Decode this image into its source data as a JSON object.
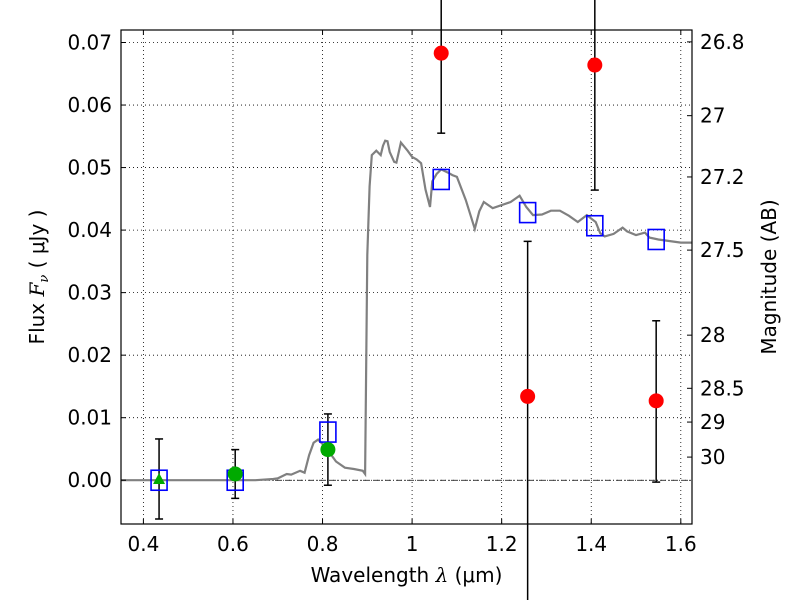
{
  "chart_data": {
    "type": "scatter",
    "xlabel": {
      "text": "Wavelength",
      "symbol": "λ",
      "unit": "(μm)"
    },
    "ylabel": {
      "text": "Flux",
      "symbol": "F",
      "subscript": "ν",
      "unit": "( μJy )"
    },
    "y2label": "Magnitude (AB)",
    "xlim": [
      0.35,
      1.625
    ],
    "ylim": [
      -0.007,
      0.072
    ],
    "x_ticks": [
      0.4,
      0.6,
      0.8,
      1.0,
      1.2,
      1.4,
      1.6
    ],
    "x_tick_labels": [
      "0.4",
      "0.6",
      "0.8",
      "1",
      "1.2",
      "1.4",
      "1.6"
    ],
    "y_ticks": [
      0.0,
      0.01,
      0.02,
      0.03,
      0.04,
      0.05,
      0.06,
      0.07
    ],
    "y_tick_labels": [
      "0.00",
      "0.01",
      "0.02",
      "0.03",
      "0.04",
      "0.05",
      "0.06",
      "0.07"
    ],
    "y2_tick_labels": [
      {
        "label": "26.8",
        "flux": 0.0701
      },
      {
        "label": "27",
        "flux": 0.0583
      },
      {
        "label": "27.2",
        "flux": 0.0485
      },
      {
        "label": "27.5",
        "flux": 0.0368
      },
      {
        "label": "28",
        "flux": 0.0232
      },
      {
        "label": "28.5",
        "flux": 0.0147
      },
      {
        "label": "29",
        "flux": 0.0093
      },
      {
        "label": "30",
        "flux": 0.0037
      }
    ],
    "grid": true,
    "colors": {
      "model": "#808080",
      "observed": "#ff0000",
      "fit": "#0000ff",
      "green": "#00aa00",
      "errorbar": "#000000",
      "zero_line": "#000000"
    },
    "series": [
      {
        "kind": "model_sed_line",
        "x": [
          0.35,
          0.5,
          0.65,
          0.69,
          0.7,
          0.72,
          0.73,
          0.75,
          0.76,
          0.77,
          0.78,
          0.79,
          0.8,
          0.815,
          0.83,
          0.85,
          0.87,
          0.89,
          0.895,
          0.9,
          0.905,
          0.91,
          0.92,
          0.93,
          0.935,
          0.94,
          0.945,
          0.95,
          0.96,
          0.965,
          0.975,
          0.99,
          1.0,
          1.01,
          1.02,
          1.03,
          1.04,
          1.045,
          1.055,
          1.065,
          1.08,
          1.09,
          1.1,
          1.12,
          1.14,
          1.15,
          1.16,
          1.18,
          1.2,
          1.22,
          1.24,
          1.255,
          1.27,
          1.29,
          1.31,
          1.33,
          1.35,
          1.37,
          1.39,
          1.41,
          1.42,
          1.43,
          1.45,
          1.47,
          1.48,
          1.5,
          1.52,
          1.53,
          1.55,
          1.58,
          1.6,
          1.625
        ],
        "y": [
          0.0,
          0.0,
          0.0,
          0.0002,
          0.0003,
          0.001,
          0.0009,
          0.0015,
          0.0012,
          0.004,
          0.006,
          0.0065,
          0.0058,
          0.0045,
          0.003,
          0.002,
          0.0018,
          0.0015,
          0.001,
          0.036,
          0.047,
          0.052,
          0.0527,
          0.052,
          0.0535,
          0.0543,
          0.0542,
          0.0525,
          0.0509,
          0.0508,
          0.054,
          0.0527,
          0.0517,
          0.0513,
          0.0507,
          0.0465,
          0.0437,
          0.0478,
          0.049,
          0.0497,
          0.0492,
          0.0488,
          0.0485,
          0.0448,
          0.0402,
          0.043,
          0.0445,
          0.0435,
          0.044,
          0.0445,
          0.0455,
          0.0437,
          0.0424,
          0.0425,
          0.0431,
          0.0431,
          0.0423,
          0.0413,
          0.0424,
          0.0413,
          0.0395,
          0.039,
          0.0394,
          0.0404,
          0.0398,
          0.0392,
          0.0396,
          0.0388,
          0.0385,
          0.0382,
          0.038,
          0.038
        ]
      },
      {
        "kind": "observed_points",
        "x": [
          1.065,
          1.258,
          1.408,
          1.545
        ],
        "y": [
          0.0683,
          0.0134,
          0.0664,
          0.0127
        ],
        "yerr_low": [
          0.0128,
          0.034,
          0.02,
          0.013
        ],
        "yerr_high": [
          0.0128,
          0.0248,
          0.02,
          0.0128
        ]
      },
      {
        "kind": "green_points",
        "marker": [
          "triangle",
          "circle",
          "circle"
        ],
        "x": [
          0.435,
          0.605,
          0.812
        ],
        "y": [
          0.0002,
          0.001,
          0.0049
        ],
        "yerr_low": [
          0.0064,
          0.0039,
          0.0057
        ],
        "yerr_high": [
          0.0064,
          0.0039,
          0.0057
        ]
      },
      {
        "kind": "model_band_fluxes",
        "marker": "open_square",
        "x": [
          0.435,
          0.605,
          0.812,
          1.065,
          1.258,
          1.408,
          1.545
        ],
        "y": [
          0.0,
          0.0,
          0.0077,
          0.0481,
          0.0428,
          0.0407,
          0.0385
        ]
      }
    ]
  }
}
